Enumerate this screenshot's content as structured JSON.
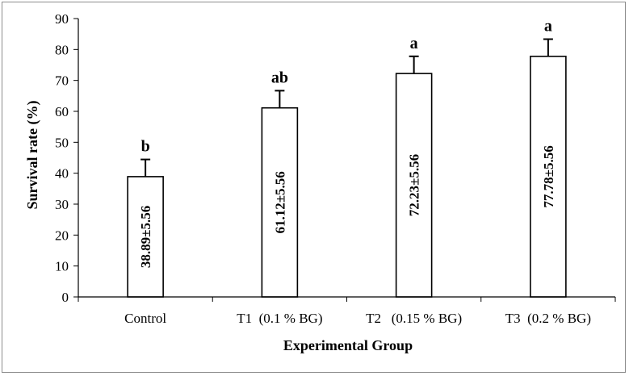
{
  "chart_data": {
    "type": "bar",
    "title": "",
    "xlabel": "Experimental Group",
    "ylabel": "Survival rate (%)",
    "ylim": [
      0,
      90
    ],
    "yticks": [
      0,
      10,
      20,
      30,
      40,
      50,
      60,
      70,
      80,
      90
    ],
    "grid": false,
    "categories": [
      "Control",
      "T1  (0.1 % BG)",
      "T2   (0.15 % BG)",
      "T3  (0.2 % BG)"
    ],
    "values": [
      38.89,
      61.12,
      72.23,
      77.78
    ],
    "errors": [
      5.56,
      5.56,
      5.56,
      5.56
    ],
    "value_labels": [
      "38.89±5.56",
      "61.12±5.56",
      "72.23±5.56",
      "77.78±5.56"
    ],
    "significance": [
      "b",
      "ab",
      "a",
      "a"
    ],
    "colors": {
      "bar_fill": "#ffffff",
      "bar_stroke": "#000000",
      "axis": "#000000"
    }
  }
}
